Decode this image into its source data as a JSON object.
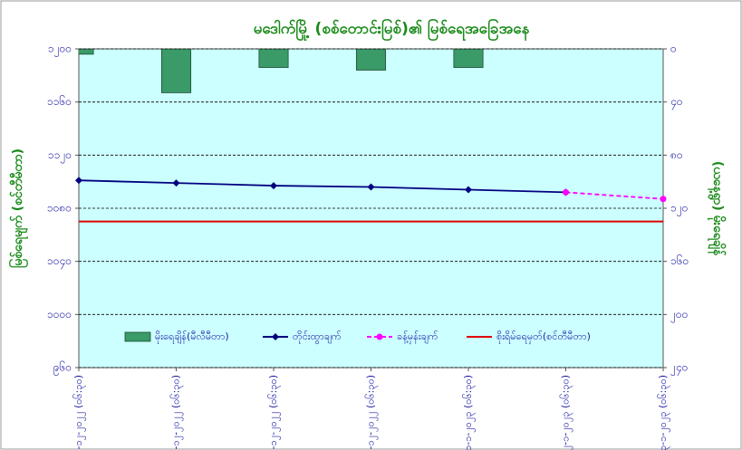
{
  "chart_data": {
    "type": "bar_line",
    "title": "မဒေါက်မြို့ (စစ်တောင်းမြစ်)၏ မြစ်ရေအခြေအနေ",
    "y_label": "မြစ်ရေမျက် (စင်တီမီတာ)",
    "y2_label": "(ယနေ့ရွာ) မိုးရေချိန်",
    "categories": [
      "၂၈-၁၂-၂၀၂၂ (၀၆:၃၀)",
      "၂၉-၁၂-၂၀၂၂ (၀၆:၃၀)",
      "၃၀-၁၂-၂၀၂၂ (၀၆:၃၀)",
      "၃၁-၁၂-၂၀၂၂ (၀၆:၃၀)",
      "၁-၁-၂၀၂၃ (၀၆:၃၀)",
      "၂-၁-၂၀၂၃ (၀၆:၃၀)",
      "၃-၁-၂၀၂၃ (၀၆:၃၀)"
    ],
    "ylim": [
      960,
      1200
    ],
    "yticks": [
      {
        "value": 960,
        "label": "၉၆၀"
      },
      {
        "value": 1000,
        "label": "၁၀၀၀"
      },
      {
        "value": 1040,
        "label": "၁၀၄၀"
      },
      {
        "value": 1080,
        "label": "၁၀၈၀"
      },
      {
        "value": 1120,
        "label": "၁၁၂၀"
      },
      {
        "value": 1160,
        "label": "၁၁၆၀"
      },
      {
        "value": 1200,
        "label": "၁၂၀၀"
      }
    ],
    "y2lim": [
      0,
      240
    ],
    "y2_reversed": true,
    "y2ticks": [
      {
        "value": 0,
        "label": "၀"
      },
      {
        "value": 40,
        "label": "၄၀"
      },
      {
        "value": 80,
        "label": "၈၀"
      },
      {
        "value": 120,
        "label": "၁၂၀"
      },
      {
        "value": 160,
        "label": "၁၆၀"
      },
      {
        "value": 200,
        "label": "၂၀၀"
      },
      {
        "value": 240,
        "label": "၂၄၀"
      }
    ],
    "grid": true,
    "background": "#ccffff",
    "series": [
      {
        "name": "မိုးရေချိန်(မီလီမီတာ)",
        "type": "bar",
        "axis": "y2",
        "color": "#3a9a68",
        "values": [
          4,
          33,
          14,
          16,
          14,
          null,
          null
        ]
      },
      {
        "name": "တိုင်းထွာချက်",
        "type": "line",
        "marker": "diamond",
        "color": "#000080",
        "values": [
          1101,
          1099,
          1097,
          1096,
          1094,
          1092,
          null
        ]
      },
      {
        "name": "ခန့်မှန်းချက်",
        "type": "line",
        "marker": "circle",
        "dashed": true,
        "color": "#ff00ff",
        "values": [
          null,
          null,
          null,
          null,
          null,
          1092,
          1087
        ]
      },
      {
        "name": "စိုးရိမ်ရေမှတ်(စင်တီမီတာ)",
        "type": "line",
        "color": "#e00000",
        "values": [
          1070,
          1070,
          1070,
          1070,
          1070,
          1070,
          1070
        ]
      }
    ]
  }
}
